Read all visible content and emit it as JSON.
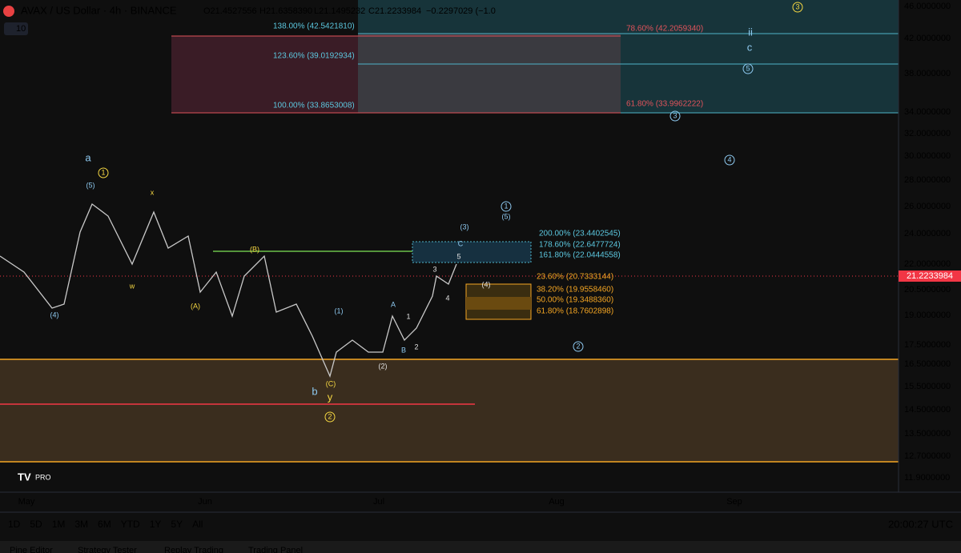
{
  "header": {
    "symbol": "AVAX / US Dollar · 4h · BINANCE",
    "open": "O21.4527556",
    "high": "H21.6358390",
    "low": "L21.1495232",
    "close": "C21.2233984",
    "change": "−0.2297029 (−1.0",
    "indicator_count": "10"
  },
  "price_axis": [
    "46.0000000",
    "42.0000000",
    "38.0000000",
    "34.0000000",
    "32.0000000",
    "30.0000000",
    "28.0000000",
    "26.0000000",
    "24.0000000",
    "22.0000000",
    "20.5000000",
    "19.0000000",
    "17.5000000",
    "16.5000000",
    "15.5000000",
    "14.5000000",
    "13.5000000",
    "12.7000000",
    "11.9000000"
  ],
  "current_price": "21.2233984",
  "time_axis": [
    "May",
    "Jun",
    "Jul",
    "Aug",
    "Sep"
  ],
  "fib_labels": [
    "138.00% (42.5421810)",
    "123.60% (39.0192934)",
    "100.00% (33.8653008)",
    "78.60% (42.2059340)",
    "61.80% (33.9962222)",
    "200.00% (23.4402545)",
    "178.60% (22.6477724)",
    "161.80% (22.0444558)",
    "23.60% (20.7333144)",
    "38.20% (19.9558460)",
    "50.00% (19.3488360)",
    "61.80% (18.7602898)"
  ],
  "wave_labels": [
    "a",
    "1",
    "(5)",
    "x",
    "w",
    "(4)",
    "(A)",
    "(B)",
    "(1)",
    "(2)",
    "(C)",
    "b",
    "y",
    "2",
    "A",
    "B",
    "1",
    "2",
    "3",
    "4",
    "5",
    "C",
    "(3)",
    "1",
    "(5)",
    "(4)",
    "2",
    "ii",
    "c",
    "5",
    "3",
    "4",
    "3"
  ],
  "toolbar": [
    "1D",
    "5D",
    "1M",
    "3M",
    "6M",
    "YTD",
    "1Y",
    "5Y",
    "All"
  ],
  "clock": "20:00:27 UTC",
  "tabs": [
    "Pine Editor",
    "Strategy Tester",
    "Replay Trading",
    "Trading Panel"
  ],
  "logo": "PRO"
}
